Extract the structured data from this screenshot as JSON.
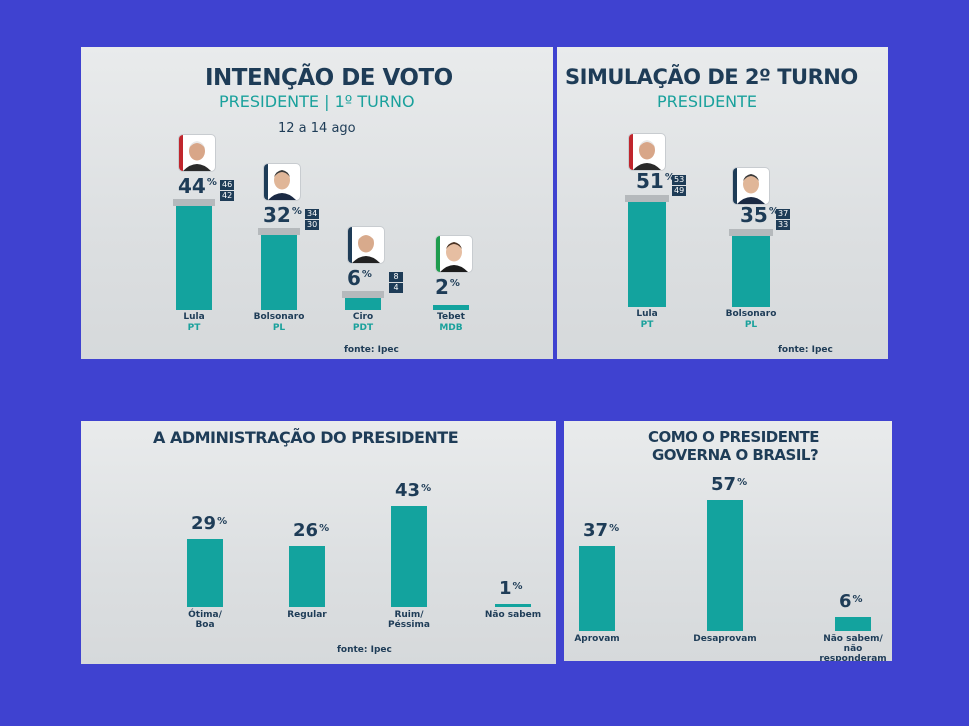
{
  "chart_data": [
    {
      "type": "bar",
      "title": "INTENÇÃO DE VOTO",
      "subtitle": "PRESIDENTE | 1º TURNO",
      "date": "12 a 14 ago",
      "categories": [
        "Lula",
        "Bolsonaro",
        "Ciro",
        "Tebet"
      ],
      "parties": [
        "PT",
        "PL",
        "PDT",
        "MDB"
      ],
      "values": [
        44,
        32,
        6,
        2
      ],
      "ci": [
        [
          "46",
          "42"
        ],
        [
          "34",
          "30"
        ],
        [
          "8",
          "4"
        ],
        []
      ],
      "unit": "%",
      "source": "fonte: Ipec"
    },
    {
      "type": "bar",
      "title": "SIMULAÇÃO DE 2º TURNO",
      "subtitle": "PRESIDENTE",
      "categories": [
        "Lula",
        "Bolsonaro"
      ],
      "parties": [
        "PT",
        "PL"
      ],
      "values": [
        51,
        35
      ],
      "ci": [
        [
          "53",
          "49"
        ],
        [
          "37",
          "33"
        ]
      ],
      "unit": "%",
      "source": "fonte: Ipec"
    },
    {
      "type": "bar",
      "title": "A ADMINISTRAÇÃO DO PRESIDENTE",
      "categories": [
        [
          "Ótima/",
          "Boa"
        ],
        [
          "Regular"
        ],
        [
          "Ruim/",
          "Péssima"
        ],
        [
          "Não sabem"
        ]
      ],
      "values": [
        29,
        26,
        43,
        1
      ],
      "unit": "%",
      "source": "fonte: Ipec"
    },
    {
      "type": "bar",
      "title_lines": [
        "COMO O PRESIDENTE",
        "GOVERNA O BRASIL?"
      ],
      "categories": [
        [
          "Aprovam"
        ],
        [
          "Desaprovam"
        ],
        [
          "Não sabem/",
          "não responderam"
        ]
      ],
      "values": [
        37,
        57,
        6
      ],
      "unit": "%"
    }
  ],
  "colors": {
    "bar": "#13a39e",
    "title": "#1e3c57",
    "accent": "#1aa19c",
    "background": "#3f42d0",
    "pt": "#c0262d",
    "pl": "#1e3c57",
    "pdt": "#1e3c57",
    "mdb": "#1f9c4e"
  },
  "icons": [
    "candidate-photo-lula",
    "candidate-photo-bolsonaro",
    "candidate-photo-ciro",
    "candidate-photo-tebet"
  ]
}
